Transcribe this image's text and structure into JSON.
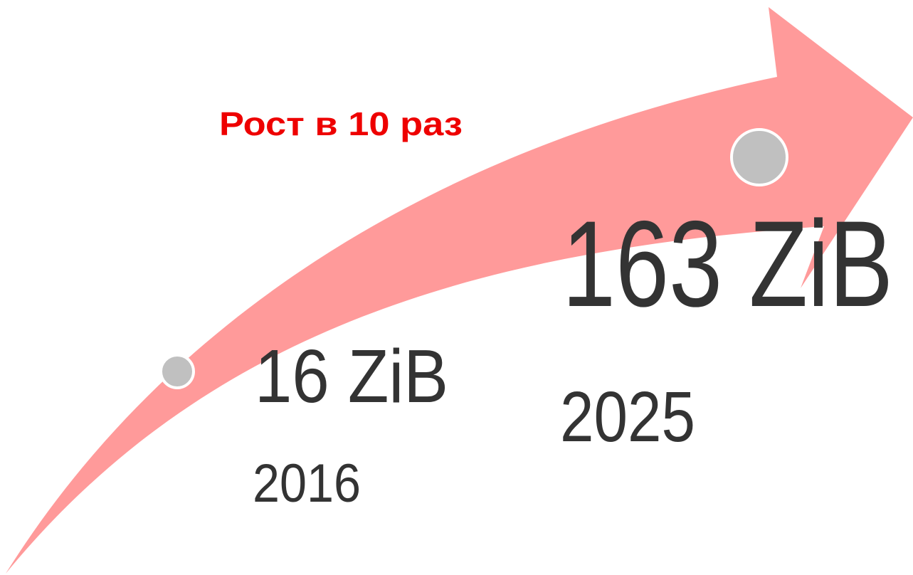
{
  "headline": "Рост в 10 раз",
  "points": [
    {
      "value": "16 ZiB",
      "year": "2016"
    },
    {
      "value": "163 ZiB",
      "year": "2025"
    }
  ]
}
